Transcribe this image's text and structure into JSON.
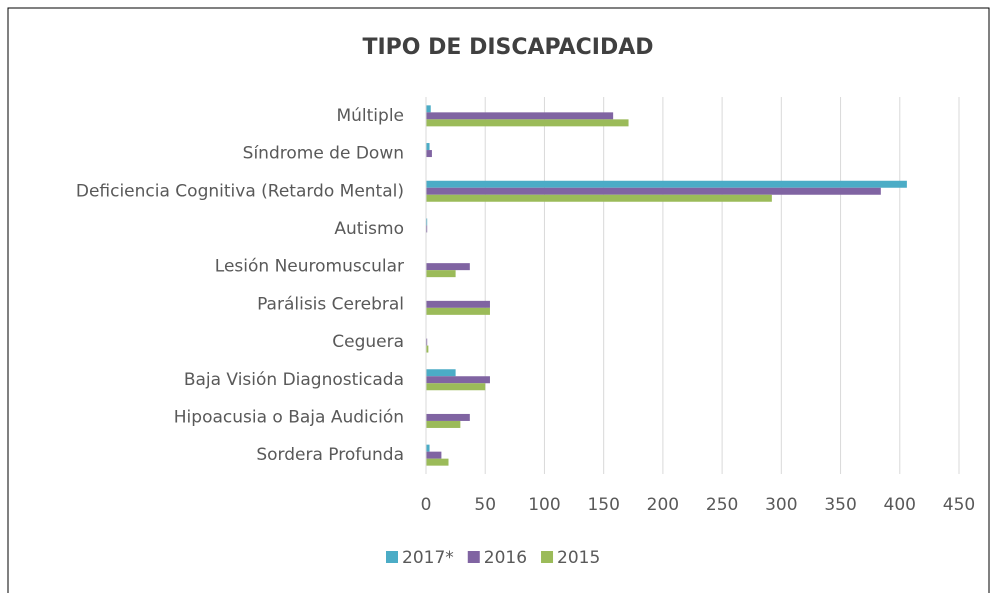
{
  "chart_data": {
    "type": "barh",
    "title": "TIPO DE DISCAPACIDAD",
    "categories": [
      "Múltiple",
      "Síndrome de Down",
      "Deficiencia Cognitiva (Retardo Mental)",
      "Autismo",
      "Lesión Neuromuscular",
      "Parálisis Cerebral",
      "Ceguera",
      "Baja Visión Diagnosticada",
      "Hipoacusia o Baja Audición",
      "Sordera Profunda"
    ],
    "series": [
      {
        "name": "2017*",
        "color": "#4bacc6",
        "values": [
          4,
          3,
          406,
          1,
          0,
          0,
          0,
          25,
          0,
          3
        ]
      },
      {
        "name": "2016",
        "color": "#8064a2",
        "values": [
          158,
          5,
          384,
          1,
          37,
          54,
          1,
          54,
          37,
          13
        ]
      },
      {
        "name": "2015",
        "color": "#9bbb59",
        "values": [
          171,
          0,
          292,
          0,
          25,
          54,
          2,
          50,
          29,
          19
        ]
      }
    ],
    "xlim": [
      0,
      450
    ],
    "xticks": [
      0,
      50,
      100,
      150,
      200,
      250,
      300,
      350,
      400,
      450
    ],
    "grid": true,
    "legend": "bottom"
  }
}
